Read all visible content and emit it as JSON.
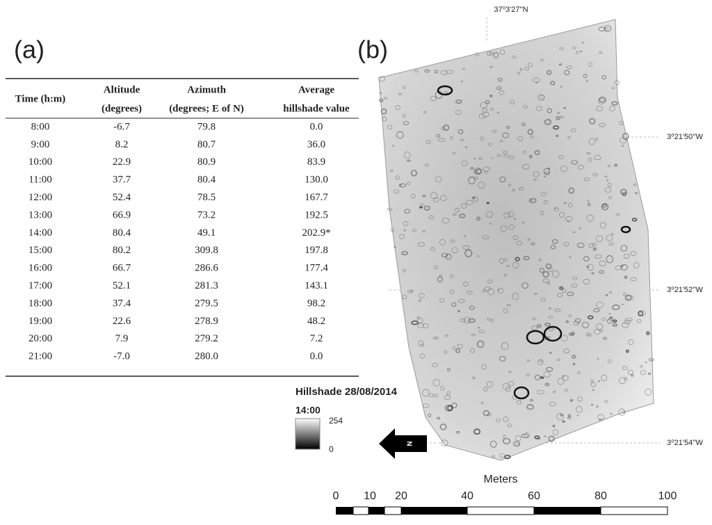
{
  "panel_a": {
    "label": "(a)",
    "table": {
      "headers": [
        [
          "Time (h:m)"
        ],
        [
          "Altitude",
          "(degrees)"
        ],
        [
          "Azimuth",
          "(degrees; E of N)"
        ],
        [
          "Average",
          "hillshade value"
        ]
      ],
      "rows": [
        [
          "8:00",
          "-6.7",
          "79.8",
          "0.0"
        ],
        [
          "9:00",
          "8.2",
          "80.7",
          "36.0"
        ],
        [
          "10:00",
          "22.9",
          "80.9",
          "83.9"
        ],
        [
          "11:00",
          "37.7",
          "80.4",
          "130.0"
        ],
        [
          "12:00",
          "52.4",
          "78.5",
          "167.7"
        ],
        [
          "13:00",
          "66.9",
          "73.2",
          "192.5"
        ],
        [
          "14:00",
          "80.4",
          "49.1",
          "202.9*"
        ],
        [
          "15:00",
          "80.2",
          "309.8",
          "197.8"
        ],
        [
          "16:00",
          "66.7",
          "286.6",
          "177.4"
        ],
        [
          "17:00",
          "52.1",
          "281.3",
          "143.1"
        ],
        [
          "18:00",
          "37.4",
          "279.5",
          "98.2"
        ],
        [
          "19:00",
          "22.6",
          "278.9",
          "48.2"
        ],
        [
          "20:00",
          "7.9",
          "279.2",
          "7.2"
        ],
        [
          "21:00",
          "-7.0",
          "280.0",
          "0.0"
        ]
      ]
    }
  },
  "panel_b": {
    "label": "(b)",
    "coordinates": {
      "top": "37⁰3'27''N",
      "right": [
        "3⁰21'50''W",
        "3⁰21'52''W",
        "3⁰21'54''W"
      ]
    },
    "legend": {
      "title": "Hillshade 28/08/2014",
      "time": "14:00",
      "max": "254",
      "min": "0"
    },
    "north_arrow": "N",
    "scale_bar": {
      "unit": "Meters",
      "labels": [
        "0",
        "10",
        "20",
        "40",
        "60",
        "80",
        "100"
      ]
    }
  }
}
